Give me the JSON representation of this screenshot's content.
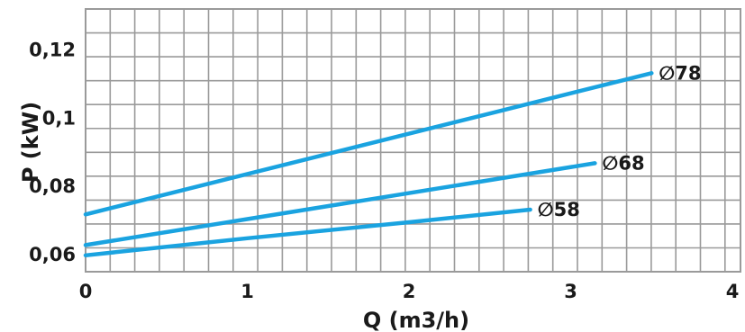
{
  "chart_data": {
    "type": "line",
    "title": "",
    "xlabel": "Q (m3/h)",
    "ylabel": "P (kW)",
    "xlim": [
      0,
      4
    ],
    "ylim": [
      0.055,
      0.132
    ],
    "xticks": [
      "0",
      "1",
      "2",
      "3",
      "4"
    ],
    "yticks": [
      "0,06",
      "0,08",
      "0,1",
      "0,12"
    ],
    "ytick_values": [
      0.06,
      0.08,
      0.1,
      0.12
    ],
    "grid": true,
    "series": [
      {
        "name": "∅78",
        "color": "#1aa3e0",
        "x": [
          0,
          3.5
        ],
        "y": [
          0.0718,
          0.1132
        ]
      },
      {
        "name": "∅68",
        "color": "#1aa3e0",
        "x": [
          0,
          3.15
        ],
        "y": [
          0.0628,
          0.0868
        ]
      },
      {
        "name": "∅58",
        "color": "#1aa3e0",
        "x": [
          0,
          1,
          2,
          2.75
        ],
        "y": [
          0.0598,
          0.0648,
          0.0695,
          0.0732
        ]
      }
    ]
  }
}
